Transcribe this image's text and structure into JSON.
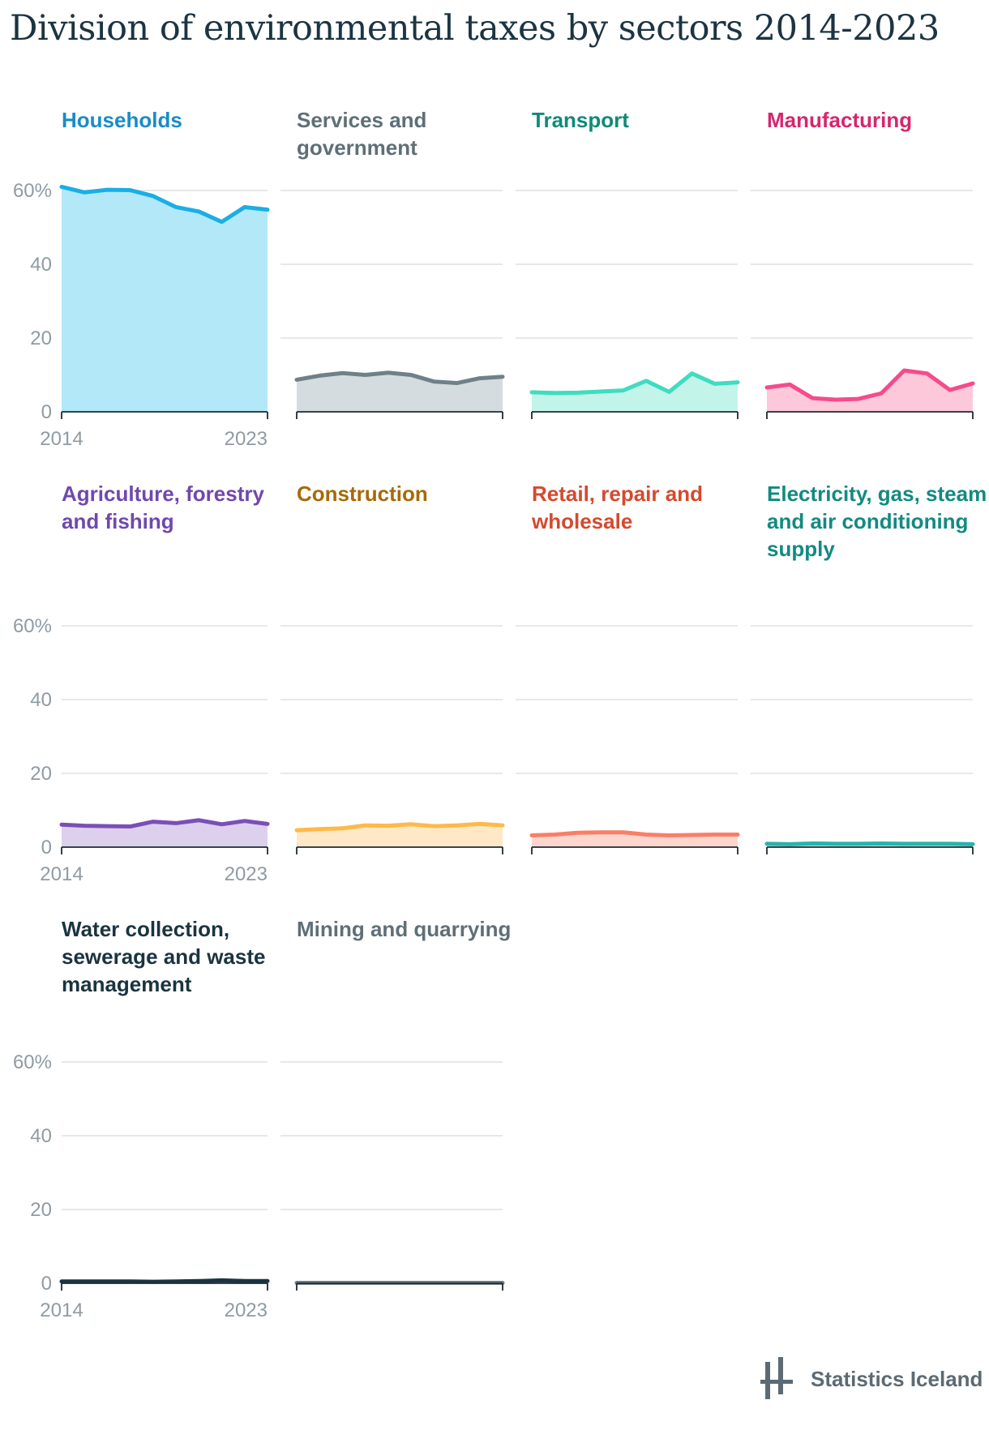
{
  "title": "Division of environmental taxes by sectors 2014-2023",
  "brand": "Statistics Iceland",
  "chart_data": {
    "type": "area",
    "layout": "small-multiples",
    "x": [
      2014,
      2015,
      2016,
      2017,
      2018,
      2019,
      2020,
      2021,
      2022,
      2023
    ],
    "xticks": [
      "2014",
      "2023"
    ],
    "ylim": [
      0,
      60
    ],
    "yticks": [
      "0",
      "20",
      "40",
      "60%"
    ],
    "grid": true,
    "series": [
      {
        "name": "Households",
        "color": "#1aaee6",
        "fill": "#b2e8f8",
        "label_color": "#1a8cc6",
        "values": [
          61,
          59.5,
          60.2,
          60.1,
          58.5,
          55.5,
          54.3,
          51.5,
          55.5,
          54.8
        ]
      },
      {
        "name": "Services and government",
        "color": "#6f8088",
        "fill": "#d5dcdf",
        "label_color": "#5f6f77",
        "values": [
          8.7,
          9.8,
          10.5,
          10.0,
          10.6,
          10.0,
          8.2,
          7.8,
          9.1,
          9.5
        ]
      },
      {
        "name": "Transport",
        "color": "#3fdcc0",
        "fill": "#c3f4ea",
        "label_color": "#0f8a78",
        "values": [
          5.3,
          5.1,
          5.2,
          5.5,
          5.8,
          8.4,
          5.4,
          10.4,
          7.6,
          8.0
        ]
      },
      {
        "name": "Manufacturing",
        "color": "#f54b8c",
        "fill": "#fcc8da",
        "label_color": "#d6266e",
        "values": [
          6.6,
          7.4,
          3.7,
          3.3,
          3.5,
          5.0,
          11.2,
          10.4,
          5.9,
          7.7
        ]
      },
      {
        "name": "Agriculture, forestry and fishing",
        "color": "#7b4fb6",
        "fill": "#ddd0ec",
        "label_color": "#7048ae",
        "values": [
          6.1,
          5.8,
          5.7,
          5.6,
          6.9,
          6.5,
          7.3,
          6.2,
          7.1,
          6.3
        ]
      },
      {
        "name": "Construction",
        "color": "#ffb94a",
        "fill": "#ffe8c6",
        "label_color": "#a66a08",
        "values": [
          4.6,
          4.9,
          5.1,
          5.9,
          5.8,
          6.2,
          5.7,
          5.9,
          6.3,
          5.9
        ]
      },
      {
        "name": "Retail, repair and wholesale",
        "color": "#fa7e67",
        "fill": "#fed6ce",
        "label_color": "#d44a2e",
        "values": [
          3.2,
          3.4,
          3.9,
          4.0,
          4.0,
          3.4,
          3.2,
          3.3,
          3.4,
          3.4
        ]
      },
      {
        "name": "Electricity, gas, steam and air conditioning supply",
        "color": "#25b5ad",
        "fill": "#c1ecea",
        "label_color": "#128a82",
        "values": [
          0.9,
          0.8,
          1.0,
          0.9,
          0.9,
          1.0,
          0.9,
          0.9,
          0.9,
          0.8
        ]
      },
      {
        "name": "Water collection, sewerage and waste management",
        "color": "#1a3440",
        "fill": "#c6cdd1",
        "label_color": "#1a3440",
        "values": [
          0.5,
          0.5,
          0.5,
          0.5,
          0.4,
          0.5,
          0.6,
          0.8,
          0.6,
          0.6
        ]
      },
      {
        "name": "Mining and quarrying",
        "color": "#6f7f87",
        "fill": "#dde2e4",
        "label_color": "#5f6f77",
        "values": [
          0.1,
          0.1,
          0.1,
          0.1,
          0.1,
          0.1,
          0.1,
          0.1,
          0.1,
          0.1
        ]
      }
    ]
  }
}
